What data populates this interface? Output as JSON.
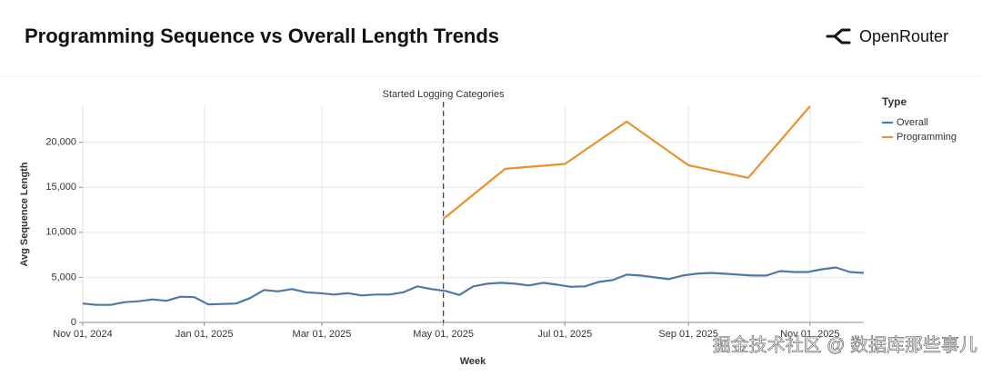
{
  "header": {
    "title": "Programming Sequence vs Overall Length Trends",
    "brand": "OpenRouter"
  },
  "watermark": "掘金技术社区 @ 数据库那些事儿",
  "chart_data": {
    "type": "line",
    "xlabel": "Week",
    "ylabel": "Avg Sequence Length",
    "xlim": [
      "2024-11-01",
      "2025-11-28"
    ],
    "xticks": [
      {
        "value": "2024-11-01",
        "label": "Nov 01, 2024"
      },
      {
        "value": "2025-01-01",
        "label": "Jan 01, 2025"
      },
      {
        "value": "2025-03-01",
        "label": "Mar 01, 2025"
      },
      {
        "value": "2025-05-01",
        "label": "May 01, 2025"
      },
      {
        "value": "2025-07-01",
        "label": "Jul 01, 2025"
      },
      {
        "value": "2025-09-01",
        "label": "Sep 01, 2025"
      },
      {
        "value": "2025-11-01",
        "label": "Nov 01, 2025"
      }
    ],
    "ylim": [
      0,
      24000
    ],
    "yticks": [
      0,
      {
        "value": 5000,
        "label": "5,000"
      },
      {
        "value": 10000,
        "label": "10,000"
      },
      {
        "value": 15000,
        "label": "15,000"
      },
      {
        "value": 20000,
        "label": "20,000"
      }
    ],
    "grid": true,
    "legend_title": "Type",
    "annotation": {
      "text": "Started Logging Categories",
      "x": "2025-05-01"
    },
    "series": [
      {
        "name": "Overall",
        "color": "#4e79a7",
        "x": [
          "2024-11-01",
          "2024-11-08",
          "2024-11-15",
          "2024-11-22",
          "2024-11-29",
          "2024-12-06",
          "2024-12-13",
          "2024-12-20",
          "2024-12-27",
          "2025-01-03",
          "2025-01-10",
          "2025-01-17",
          "2025-01-24",
          "2025-01-31",
          "2025-02-07",
          "2025-02-14",
          "2025-02-21",
          "2025-02-28",
          "2025-03-07",
          "2025-03-14",
          "2025-03-21",
          "2025-03-28",
          "2025-04-04",
          "2025-04-11",
          "2025-04-18",
          "2025-04-25",
          "2025-05-02",
          "2025-05-09",
          "2025-05-16",
          "2025-05-23",
          "2025-05-30",
          "2025-06-06",
          "2025-06-13",
          "2025-06-20",
          "2025-06-27",
          "2025-07-04",
          "2025-07-11",
          "2025-07-18",
          "2025-07-25",
          "2025-08-01",
          "2025-08-08",
          "2025-08-15",
          "2025-08-22",
          "2025-08-29",
          "2025-09-05",
          "2025-09-12",
          "2025-09-19",
          "2025-09-26",
          "2025-10-03",
          "2025-10-10",
          "2025-10-17",
          "2025-10-24",
          "2025-10-31",
          "2025-11-07",
          "2025-11-14",
          "2025-11-21",
          "2025-11-28"
        ],
        "values": [
          2100,
          1950,
          1950,
          2250,
          2350,
          2550,
          2400,
          2850,
          2800,
          2000,
          2050,
          2100,
          2700,
          3600,
          3450,
          3700,
          3350,
          3250,
          3100,
          3250,
          3000,
          3100,
          3100,
          3350,
          4000,
          3700,
          3500,
          3050,
          4000,
          4300,
          4400,
          4300,
          4100,
          4400,
          4200,
          3950,
          4000,
          4500,
          4700,
          5300,
          5200,
          5000,
          4800,
          5200,
          5400,
          5500,
          5400,
          5300,
          5200,
          5200,
          5700,
          5600,
          5600,
          5900,
          6100,
          5600,
          5500
        ]
      },
      {
        "name": "Programming",
        "color": "#e8912d",
        "x": [
          "2025-05-01",
          "2025-06-01",
          "2025-07-01",
          "2025-08-01",
          "2025-09-01",
          "2025-10-01",
          "2025-11-01"
        ],
        "values": [
          11500,
          17050,
          17600,
          22300,
          17450,
          16050,
          24000
        ]
      }
    ]
  }
}
